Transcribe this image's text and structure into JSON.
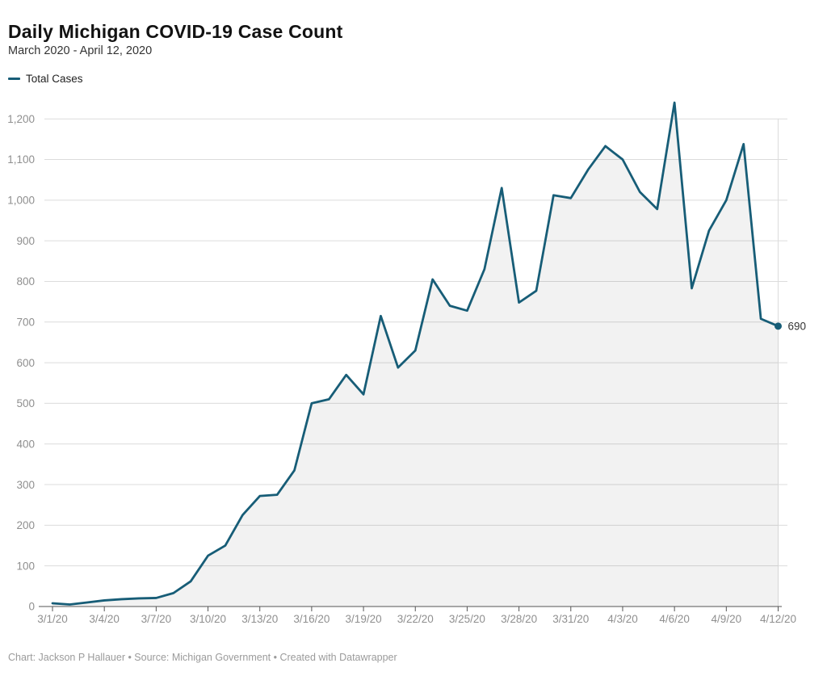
{
  "header": {
    "title": "Daily Michigan COVID-19 Case Count",
    "subtitle": "March 2020 - April 12, 2020"
  },
  "legend": {
    "items": [
      {
        "label": "Total Cases",
        "color": "#175d77"
      }
    ]
  },
  "footer": {
    "credits": "Chart: Jackson P Hallauer • Source: Michigan Government • Created with Datawrapper"
  },
  "chart_data": {
    "type": "area",
    "title": "Daily Michigan COVID-19 Case Count",
    "subtitle": "March 2020 - April 12, 2020",
    "xlabel": "",
    "ylabel": "",
    "x": [
      "3/1/20",
      "3/2/20",
      "3/3/20",
      "3/4/20",
      "3/5/20",
      "3/6/20",
      "3/7/20",
      "3/8/20",
      "3/9/20",
      "3/10/20",
      "3/11/20",
      "3/12/20",
      "3/13/20",
      "3/14/20",
      "3/15/20",
      "3/16/20",
      "3/17/20",
      "3/18/20",
      "3/19/20",
      "3/20/20",
      "3/21/20",
      "3/22/20",
      "3/23/20",
      "3/24/20",
      "3/25/20",
      "3/26/20",
      "3/27/20",
      "3/28/20",
      "3/29/20",
      "3/30/20",
      "3/31/20",
      "4/1/20",
      "4/2/20",
      "4/3/20",
      "4/4/20",
      "4/5/20",
      "4/6/20",
      "4/7/20",
      "4/8/20",
      "4/9/20",
      "4/10/20",
      "4/11/20",
      "4/12/20"
    ],
    "series": [
      {
        "name": "Total Cases",
        "values": [
          8,
          5,
          10,
          15,
          18,
          20,
          21,
          33,
          62,
          125,
          150,
          225,
          272,
          275,
          335,
          500,
          510,
          570,
          522,
          715,
          588,
          630,
          805,
          740,
          728,
          830,
          1030,
          748,
          777,
          1012,
          1005,
          1075,
          1133,
          1100,
          1020,
          978,
          1240,
          783,
          925,
          1000,
          1138,
          708,
          690
        ]
      }
    ],
    "x_tick_labels": [
      "3/1/20",
      "3/4/20",
      "3/7/20",
      "3/10/20",
      "3/13/20",
      "3/16/20",
      "3/19/20",
      "3/22/20",
      "3/25/20",
      "3/28/20",
      "3/31/20",
      "4/3/20",
      "4/6/20",
      "4/9/20",
      "4/12/20"
    ],
    "x_tick_every": 3,
    "y_ticks": [
      0,
      100,
      200,
      300,
      400,
      500,
      600,
      700,
      800,
      900,
      1000,
      1100,
      1200
    ],
    "y_tick_labels": [
      "0",
      "100",
      "200",
      "300",
      "400",
      "500",
      "600",
      "700",
      "800",
      "900",
      "1,000",
      "1,100",
      "1,200"
    ],
    "ylim": [
      0,
      1250
    ],
    "grid": "horizontal",
    "legend_position": "top-left",
    "end_point_label": "690",
    "line_color": "#175d77",
    "area_color": "rgba(0,0,0,0.05)",
    "grid_color": "#dcdcdc",
    "axis_color": "#555555",
    "tick_label_color": "#8f8f8f",
    "end_label_color": "#333333"
  }
}
